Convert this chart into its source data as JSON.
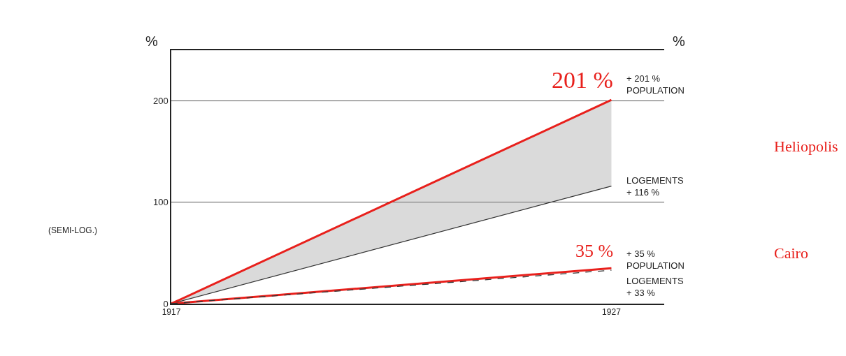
{
  "chart_data": {
    "type": "line",
    "x": [
      1917,
      1927
    ],
    "xlim": [
      1917,
      1928.2
    ],
    "xticks": [
      1917,
      1927
    ],
    "ylim": [
      0,
      250
    ],
    "yticks": [
      0,
      100,
      200
    ],
    "grid": "y",
    "ylabel": "%",
    "y2label": "%",
    "series": [
      {
        "color": "#e8201c",
        "values": [
          0,
          201
        ],
        "lower": [
          0,
          116
        ],
        "upper": [
          0,
          201
        ],
        "line_style": "solid"
      },
      {
        "color": "#333333",
        "values": [
          0,
          116
        ],
        "line_style": "solid"
      },
      {
        "color": "#e8201c",
        "values": [
          0,
          35
        ],
        "line_style": "solid"
      },
      {
        "color": "#333333",
        "values": [
          0,
          33
        ],
        "line_style": "dashed"
      }
    ],
    "annotations": [
      {
        "text": "201 %",
        "x": 1927,
        "y": 201
      },
      {
        "text": "35 %",
        "x": 1927,
        "y": 35
      },
      "+ 201 %\nPOPULATION",
      "LOGEMENTS\n+ 116 %",
      "+ 35 %\nPOPULATION",
      "LOGEMENTS\n+ 33 %",
      "Heliopolis",
      "Cairo",
      "(SEMI-LOG.)"
    ]
  }
}
